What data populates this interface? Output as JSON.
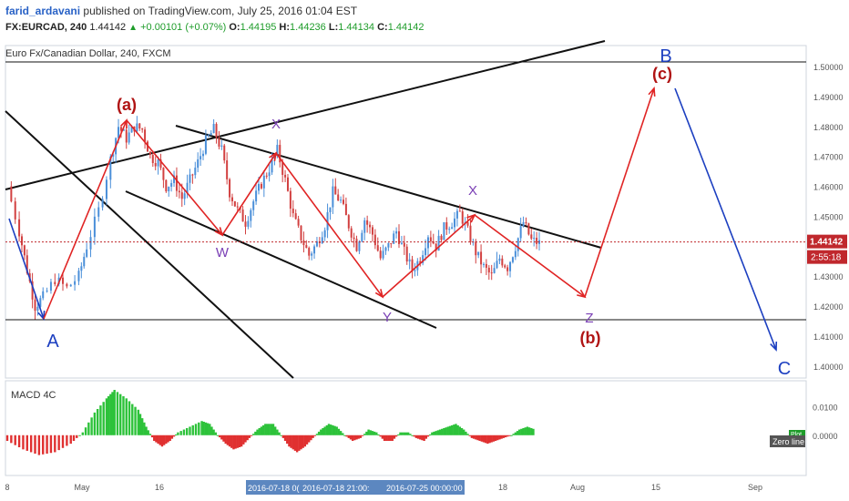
{
  "header": {
    "author": "farid_ardavani",
    "published_text": "published on TradingView.com, July 25, 2016 01:04 EST",
    "symbol": "FX:EURCAD, 240",
    "last": "1.44142",
    "change": "+0.00101 (+0.07%)",
    "open_label": "O:",
    "open": "1.44195",
    "high_label": "H:",
    "high": "1.44236",
    "low_label": "L:",
    "low": "1.44134",
    "close_label": "C:",
    "close": "1.44142"
  },
  "legend": "Euro Fx/Canadian Dollar, 240, FXCM",
  "macd_legend": "MACD 4C",
  "colors": {
    "up": "#4a8fd9",
    "down": "#d24040",
    "trendline": "#111111",
    "wave_red": "#e02424",
    "wave_blue": "#1c3fc0",
    "wave_purple": "#7a3fb5",
    "label_dark_red": "#b01414",
    "price_line": "#c0282d",
    "macd_green": "#2dc23a",
    "macd_red": "#e03030"
  },
  "chart_data": {
    "type": "candlestick",
    "symbol": "EURCAD",
    "timeframe": "240",
    "ylim": [
      1.396,
      1.507
    ],
    "y_ticks": [
      "1.50000",
      "1.49000",
      "1.48000",
      "1.47000",
      "1.46000",
      "1.45000",
      "1.43000",
      "1.42000",
      "1.41000",
      "1.40000"
    ],
    "last_price_label": "1.44142",
    "countdown_label": "2:55:18",
    "x_ticks": [
      "8",
      "May",
      "16",
      "Aug",
      "15",
      "Sep"
    ],
    "crosshair_labels": [
      "2016-07-18 0(",
      "2016-07-18 21:00:",
      "2016-07-25 00:00:00"
    ],
    "x_tail_label": "18",
    "price_path": [
      [
        0,
        1.46
      ],
      [
        3,
        1.445
      ],
      [
        5,
        1.432
      ],
      [
        7,
        1.42
      ],
      [
        9,
        1.423
      ],
      [
        12,
        1.429
      ],
      [
        15,
        1.426
      ],
      [
        18,
        1.43
      ],
      [
        20,
        1.44
      ],
      [
        23,
        1.452
      ],
      [
        26,
        1.469
      ],
      [
        28,
        1.48
      ],
      [
        30,
        1.476
      ],
      [
        32,
        1.48
      ],
      [
        34,
        1.479
      ],
      [
        36,
        1.47
      ],
      [
        38,
        1.468
      ],
      [
        40,
        1.46
      ],
      [
        42,
        1.462
      ],
      [
        44,
        1.456
      ],
      [
        46,
        1.462
      ],
      [
        48,
        1.468
      ],
      [
        50,
        1.475
      ],
      [
        52,
        1.479
      ],
      [
        54,
        1.472
      ],
      [
        56,
        1.458
      ],
      [
        58,
        1.452
      ],
      [
        60,
        1.448
      ],
      [
        62,
        1.455
      ],
      [
        64,
        1.461
      ],
      [
        66,
        1.466
      ],
      [
        68,
        1.472
      ],
      [
        70,
        1.462
      ],
      [
        72,
        1.45
      ],
      [
        74,
        1.443
      ],
      [
        76,
        1.437
      ],
      [
        78,
        1.441
      ],
      [
        80,
        1.447
      ],
      [
        82,
        1.458
      ],
      [
        84,
        1.455
      ],
      [
        86,
        1.447
      ],
      [
        88,
        1.44
      ],
      [
        90,
        1.449
      ],
      [
        92,
        1.444
      ],
      [
        94,
        1.436
      ],
      [
        96,
        1.44
      ],
      [
        98,
        1.445
      ],
      [
        100,
        1.438
      ],
      [
        102,
        1.432
      ],
      [
        104,
        1.436
      ],
      [
        106,
        1.444
      ],
      [
        108,
        1.44
      ],
      [
        110,
        1.446
      ],
      [
        112,
        1.448
      ],
      [
        114,
        1.451
      ],
      [
        116,
        1.445
      ],
      [
        118,
        1.438
      ],
      [
        120,
        1.433
      ],
      [
        122,
        1.43
      ],
      [
        124,
        1.436
      ],
      [
        126,
        1.433
      ],
      [
        128,
        1.44
      ],
      [
        130,
        1.448
      ],
      [
        132,
        1.442
      ],
      [
        134,
        1.441
      ]
    ],
    "macd_ylim": [
      -0.011,
      0.016
    ],
    "macd_ticks": [
      "0.0100",
      "0.0000"
    ],
    "macd_path": [
      [
        0,
        -0.002
      ],
      [
        4,
        -0.005
      ],
      [
        8,
        -0.007
      ],
      [
        12,
        -0.006
      ],
      [
        16,
        -0.003
      ],
      [
        19,
        0.001
      ],
      [
        22,
        0.008
      ],
      [
        25,
        0.013
      ],
      [
        27,
        0.016
      ],
      [
        30,
        0.013
      ],
      [
        33,
        0.009
      ],
      [
        35,
        0.003
      ],
      [
        37,
        -0.002
      ],
      [
        39,
        -0.004
      ],
      [
        41,
        -0.002
      ],
      [
        43,
        0.001
      ],
      [
        46,
        0.003
      ],
      [
        49,
        0.005
      ],
      [
        51,
        0.004
      ],
      [
        53,
        0.0
      ],
      [
        55,
        -0.003
      ],
      [
        57,
        -0.005
      ],
      [
        59,
        -0.004
      ],
      [
        61,
        -0.001
      ],
      [
        63,
        0.002
      ],
      [
        65,
        0.004
      ],
      [
        67,
        0.004
      ],
      [
        69,
        0.0
      ],
      [
        71,
        -0.004
      ],
      [
        73,
        -0.006
      ],
      [
        75,
        -0.004
      ],
      [
        77,
        -0.001
      ],
      [
        79,
        0.002
      ],
      [
        81,
        0.004
      ],
      [
        83,
        0.003
      ],
      [
        85,
        0.0
      ],
      [
        87,
        -0.002
      ],
      [
        89,
        -0.001
      ],
      [
        91,
        0.002
      ],
      [
        93,
        0.001
      ],
      [
        95,
        -0.002
      ],
      [
        97,
        -0.002
      ],
      [
        99,
        0.001
      ],
      [
        101,
        0.001
      ],
      [
        103,
        -0.001
      ],
      [
        105,
        -0.002
      ],
      [
        107,
        0.001
      ],
      [
        109,
        0.002
      ],
      [
        111,
        0.003
      ],
      [
        113,
        0.004
      ],
      [
        115,
        0.002
      ],
      [
        117,
        -0.001
      ],
      [
        119,
        -0.002
      ],
      [
        121,
        -0.003
      ],
      [
        123,
        -0.002
      ],
      [
        125,
        -0.001
      ],
      [
        127,
        0.0
      ],
      [
        129,
        0.002
      ],
      [
        131,
        0.003
      ],
      [
        133,
        0.002
      ]
    ],
    "macd_badges": [
      "Plot",
      "Zero line"
    ],
    "wave_labels": {
      "A": "A",
      "B": "B",
      "C": "C",
      "a": "(a)",
      "b": "(b)",
      "c": "(c)",
      "w": "W",
      "x1": "X",
      "x2": "X",
      "y": "Y",
      "z": "Z"
    }
  }
}
